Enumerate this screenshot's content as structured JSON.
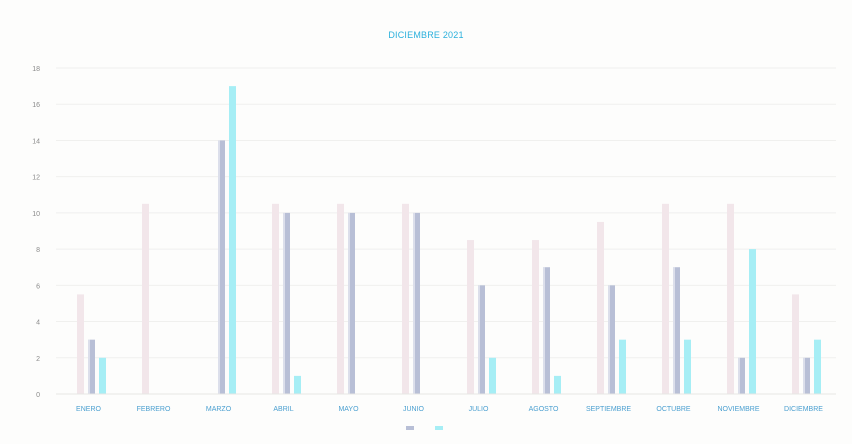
{
  "chart_data": {
    "type": "bar",
    "title": "DICIEMBRE 2021",
    "categories": [
      "ENERO",
      "FEBRERO",
      "MARZO",
      "ABRIL",
      "MAYO",
      "JUNIO",
      "JULIO",
      "AGOSTO",
      "SEPTIEMBRE",
      "OCTUBRE",
      "NOVIEMBRE",
      "DICIEMBRE"
    ],
    "ylim": [
      0,
      18
    ],
    "yticks": [
      0,
      2,
      4,
      6,
      8,
      10,
      12,
      14,
      16,
      18
    ],
    "grid": true,
    "legend_position": "bottom",
    "series": [
      {
        "values": [
          5.5,
          10.5,
          0,
          10.5,
          10.5,
          10.5,
          8.5,
          8.5,
          9.5,
          10.5,
          10.5,
          5.5
        ],
        "color": "#f2e6ea"
      },
      {
        "values": [
          3,
          0,
          14,
          10,
          10,
          10,
          6,
          7,
          6,
          7,
          2,
          2
        ],
        "color": "#b8bfd6"
      },
      {
        "values": [
          2,
          0,
          17,
          1,
          0,
          0,
          2,
          1,
          3,
          3,
          8,
          3
        ],
        "color": "#a6eef5"
      }
    ],
    "legend": [
      "",
      ""
    ]
  }
}
